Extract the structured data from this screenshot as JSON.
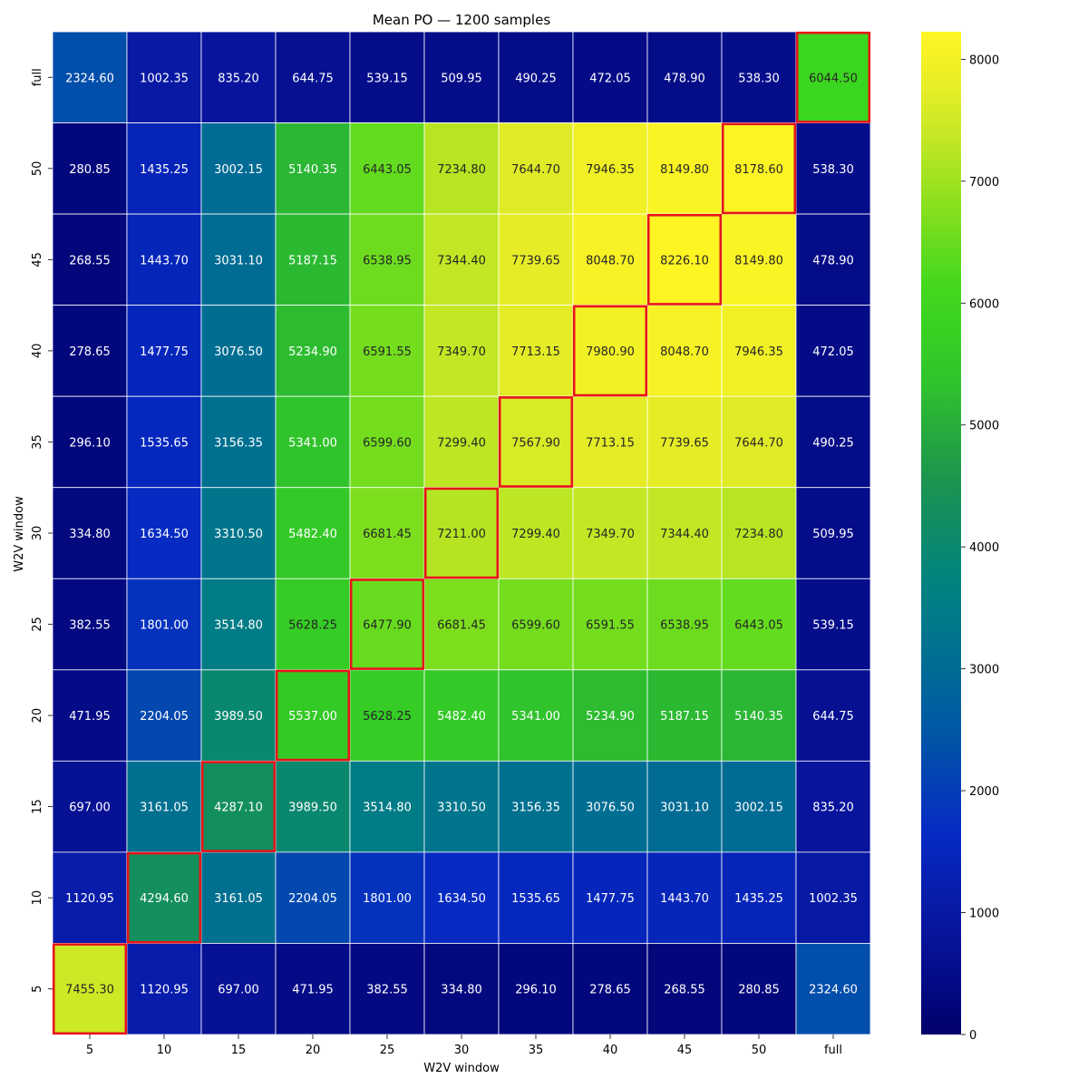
{
  "chart_data": {
    "type": "heatmap",
    "title": "Mean PO — 1200 samples",
    "xlabel": "W2V window",
    "ylabel": "W2V window",
    "x_categories": [
      "5",
      "10",
      "15",
      "20",
      "25",
      "30",
      "35",
      "40",
      "45",
      "50",
      "full"
    ],
    "y_categories": [
      "full",
      "50",
      "45",
      "40",
      "35",
      "30",
      "25",
      "20",
      "15",
      "10",
      "5"
    ],
    "values": [
      [
        2324.6,
        1002.35,
        835.2,
        644.75,
        539.15,
        509.95,
        490.25,
        472.05,
        478.9,
        538.3,
        6044.5
      ],
      [
        280.85,
        1435.25,
        3002.15,
        5140.35,
        6443.05,
        7234.8,
        7644.7,
        7946.35,
        8149.8,
        8178.6,
        538.3
      ],
      [
        268.55,
        1443.7,
        3031.1,
        5187.15,
        6538.95,
        7344.4,
        7739.65,
        8048.7,
        8226.1,
        8149.8,
        478.9
      ],
      [
        278.65,
        1477.75,
        3076.5,
        5234.9,
        6591.55,
        7349.7,
        7713.15,
        7980.9,
        8048.7,
        7946.35,
        472.05
      ],
      [
        296.1,
        1535.65,
        3156.35,
        5341.0,
        6599.6,
        7299.4,
        7567.9,
        7713.15,
        7739.65,
        7644.7,
        490.25
      ],
      [
        334.8,
        1634.5,
        3310.5,
        5482.4,
        6681.45,
        7211.0,
        7299.4,
        7349.7,
        7344.4,
        7234.8,
        509.95
      ],
      [
        382.55,
        1801.0,
        3514.8,
        5628.25,
        6477.9,
        6681.45,
        6599.6,
        6591.55,
        6538.95,
        6443.05,
        539.15
      ],
      [
        471.95,
        2204.05,
        3989.5,
        5537.0,
        5628.25,
        5482.4,
        5341.0,
        5234.9,
        5187.15,
        5140.35,
        644.75
      ],
      [
        697.0,
        3161.05,
        4287.1,
        3989.5,
        3514.8,
        3310.5,
        3156.35,
        3076.5,
        3031.1,
        3002.15,
        835.2
      ],
      [
        1120.95,
        4294.6,
        3161.05,
        2204.05,
        1801.0,
        1634.5,
        1535.65,
        1477.75,
        1443.7,
        1435.25,
        1002.35
      ],
      [
        7455.3,
        1120.95,
        697.0,
        471.95,
        382.55,
        334.8,
        296.1,
        278.65,
        268.55,
        280.85,
        2324.6
      ]
    ],
    "highlighted_cells": [
      [
        "5",
        "5"
      ],
      [
        "10",
        "10"
      ],
      [
        "15",
        "15"
      ],
      [
        "20",
        "20"
      ],
      [
        "25",
        "25"
      ],
      [
        "30",
        "30"
      ],
      [
        "35",
        "35"
      ],
      [
        "40",
        "40"
      ],
      [
        "45",
        "45"
      ],
      [
        "50",
        "50"
      ],
      [
        "full",
        "full"
      ]
    ],
    "highlight_color": "#e8141a",
    "colormap": "gist_earth-like: navy → blue → teal → green → yellow",
    "colorbar": {
      "range": [
        0,
        8226.1
      ],
      "ticks": [
        0,
        1000,
        2000,
        3000,
        4000,
        5000,
        6000,
        7000,
        8000
      ]
    },
    "value_format": "2 decimals",
    "grid": false
  }
}
